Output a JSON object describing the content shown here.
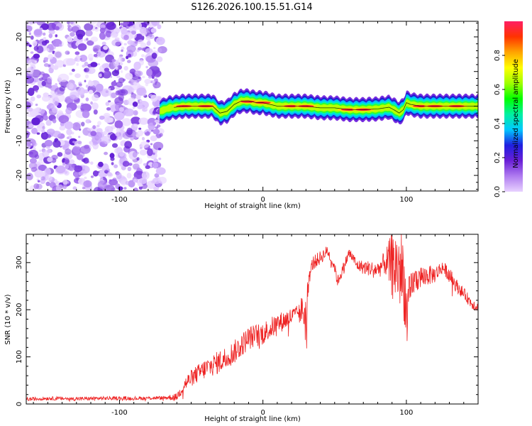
{
  "title": "S126.2026.100.15.51.G14",
  "chart_data": [
    {
      "type": "heatmap",
      "name": "spectrogram",
      "xlabel": "Height of straight line (km)",
      "ylabel": "Frequency (Hz)",
      "xlim": [
        -165,
        150
      ],
      "ylim": [
        -24.5,
        24.5
      ],
      "x_ticks": [
        -100,
        0,
        100
      ],
      "x_tick_labels": [
        "-100",
        "0",
        "100"
      ],
      "y_ticks": [
        -20,
        -10,
        0,
        10,
        20
      ],
      "y_tick_labels": [
        "-20",
        "-10",
        "0",
        "10",
        "20"
      ],
      "noise_region_x": [
        -165,
        -70
      ],
      "trace": {
        "x": [
          -72,
          -65,
          -55,
          -45,
          -35,
          -30,
          -25,
          -20,
          -15,
          -10,
          -5,
          0,
          10,
          20,
          30,
          40,
          50,
          60,
          70,
          80,
          88,
          92,
          95,
          98,
          100,
          103,
          110,
          120,
          130,
          140,
          150
        ],
        "freq": [
          -1.5,
          -0.5,
          0.0,
          0.0,
          0.0,
          -2.0,
          -1.5,
          0.5,
          1.5,
          1.5,
          1.0,
          1.0,
          0.0,
          0.0,
          0.0,
          -0.5,
          -0.5,
          -1.0,
          -1.0,
          -0.8,
          -0.3,
          -1.2,
          -2.0,
          -1.0,
          1.0,
          0.5,
          0.0,
          0.0,
          0.0,
          0.0,
          0.0
        ]
      },
      "colorbar": {
        "label": "Normalized spectral amplitude",
        "ticks": [
          0.0,
          0.2,
          0.4,
          0.6,
          0.8
        ],
        "tick_labels": [
          "0.0",
          "0.2",
          "0.4",
          "0.6",
          "0.8"
        ],
        "range": [
          0,
          1
        ],
        "colors": [
          "#e8d2ff",
          "#b07cf0",
          "#6a1fd6",
          "#1f1fe0",
          "#00c8ff",
          "#00f0a0",
          "#00ff00",
          "#9fff00",
          "#ffff00",
          "#ffa500",
          "#ff3300",
          "#ff1e64"
        ]
      }
    },
    {
      "type": "line",
      "name": "snr",
      "xlabel": "Height of straight line (km)",
      "ylabel": "SNR (10 * v/v)",
      "xlim": [
        -165,
        150
      ],
      "ylim": [
        0,
        360
      ],
      "x_ticks": [
        -100,
        0,
        100
      ],
      "x_tick_labels": [
        "-100",
        "0",
        "100"
      ],
      "y_ticks": [
        0,
        100,
        200,
        300
      ],
      "y_tick_labels": [
        "0",
        "100",
        "200",
        "300"
      ],
      "color": "#ee2222",
      "x": [
        -165,
        -150,
        -130,
        -110,
        -90,
        -70,
        -60,
        -55,
        -50,
        -40,
        -30,
        -20,
        -10,
        0,
        10,
        20,
        25,
        28,
        30,
        32,
        35,
        40,
        45,
        50,
        52,
        55,
        60,
        63,
        65,
        70,
        80,
        85,
        90,
        95,
        98,
        100,
        105,
        110,
        120,
        125,
        130,
        135,
        140,
        145,
        150
      ],
      "y": [
        10,
        12,
        11,
        12,
        12,
        13,
        15,
        40,
        55,
        75,
        90,
        110,
        140,
        150,
        170,
        185,
        195,
        200,
        180,
        270,
        300,
        310,
        325,
        290,
        260,
        280,
        320,
        310,
        295,
        290,
        285,
        300,
        295,
        290,
        270,
        200,
        260,
        270,
        275,
        290,
        275,
        250,
        235,
        215,
        205
      ],
      "noise": [
        4,
        4,
        4,
        4,
        4,
        4,
        8,
        15,
        18,
        22,
        25,
        25,
        25,
        25,
        22,
        20,
        15,
        40,
        60,
        20,
        15,
        15,
        12,
        12,
        12,
        12,
        12,
        12,
        12,
        15,
        18,
        25,
        70,
        90,
        90,
        60,
        30,
        25,
        18,
        15,
        15,
        15,
        12,
        12,
        12
      ]
    }
  ]
}
